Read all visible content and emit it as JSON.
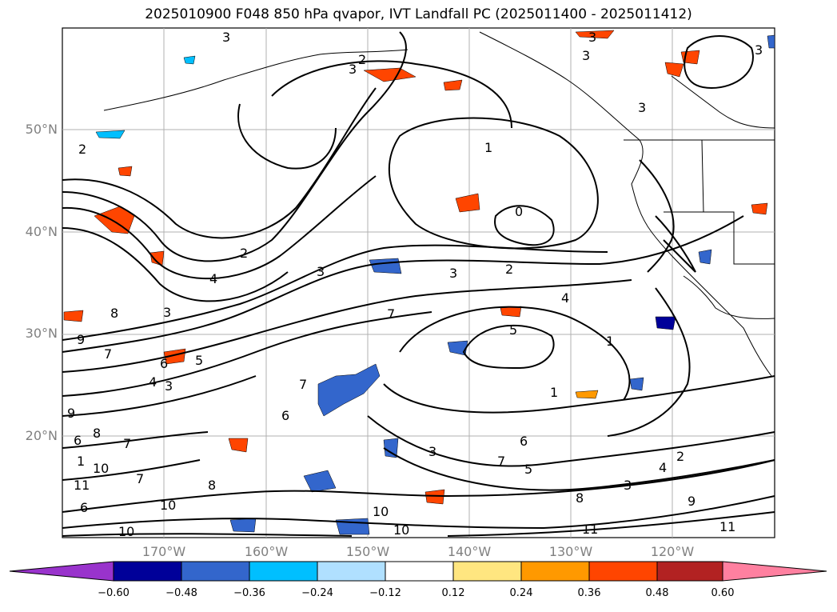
{
  "title": "2025010900 F048 850 hPa qvapor, IVT Landfall PC (2025011400 - 2025011412)",
  "map": {
    "lat_labels": [
      "50°N",
      "40°N",
      "30°N",
      "20°N"
    ],
    "lon_labels": [
      "170°W",
      "160°W",
      "150°W",
      "140°W",
      "130°W",
      "120°W"
    ],
    "contour_labels": [
      "3",
      "2",
      "3",
      "3",
      "3",
      "3",
      "3",
      "2",
      "1",
      "0",
      "2",
      "3",
      "4",
      "8",
      "9",
      "7",
      "6",
      "5",
      "4",
      "3",
      "9",
      "8",
      "6",
      "7",
      "1",
      "10",
      "11",
      "7",
      "8",
      "10",
      "6",
      "3",
      "7",
      "5",
      "4",
      "1",
      "2",
      "3",
      "7",
      "8",
      "9",
      "10",
      "11",
      "11",
      "10",
      "10",
      "6",
      "3",
      "4",
      "5",
      "6",
      "7",
      "1",
      "2",
      "3"
    ],
    "colors": {
      "land_outline": "#000000",
      "grid": "#b0b0b0",
      "contour": "#000000"
    }
  },
  "colorbar": {
    "ticks": [
      "−0.60",
      "−0.48",
      "−0.36",
      "−0.24",
      "−0.12",
      "0.12",
      "0.24",
      "0.36",
      "0.48",
      "0.60"
    ],
    "colors": [
      "#9933cc",
      "#000099",
      "#3366cc",
      "#00bfff",
      "#b0e0ff",
      "#ffffff",
      "#ffe680",
      "#ff9900",
      "#ff4500",
      "#b22222",
      "#ff80a0"
    ]
  }
}
